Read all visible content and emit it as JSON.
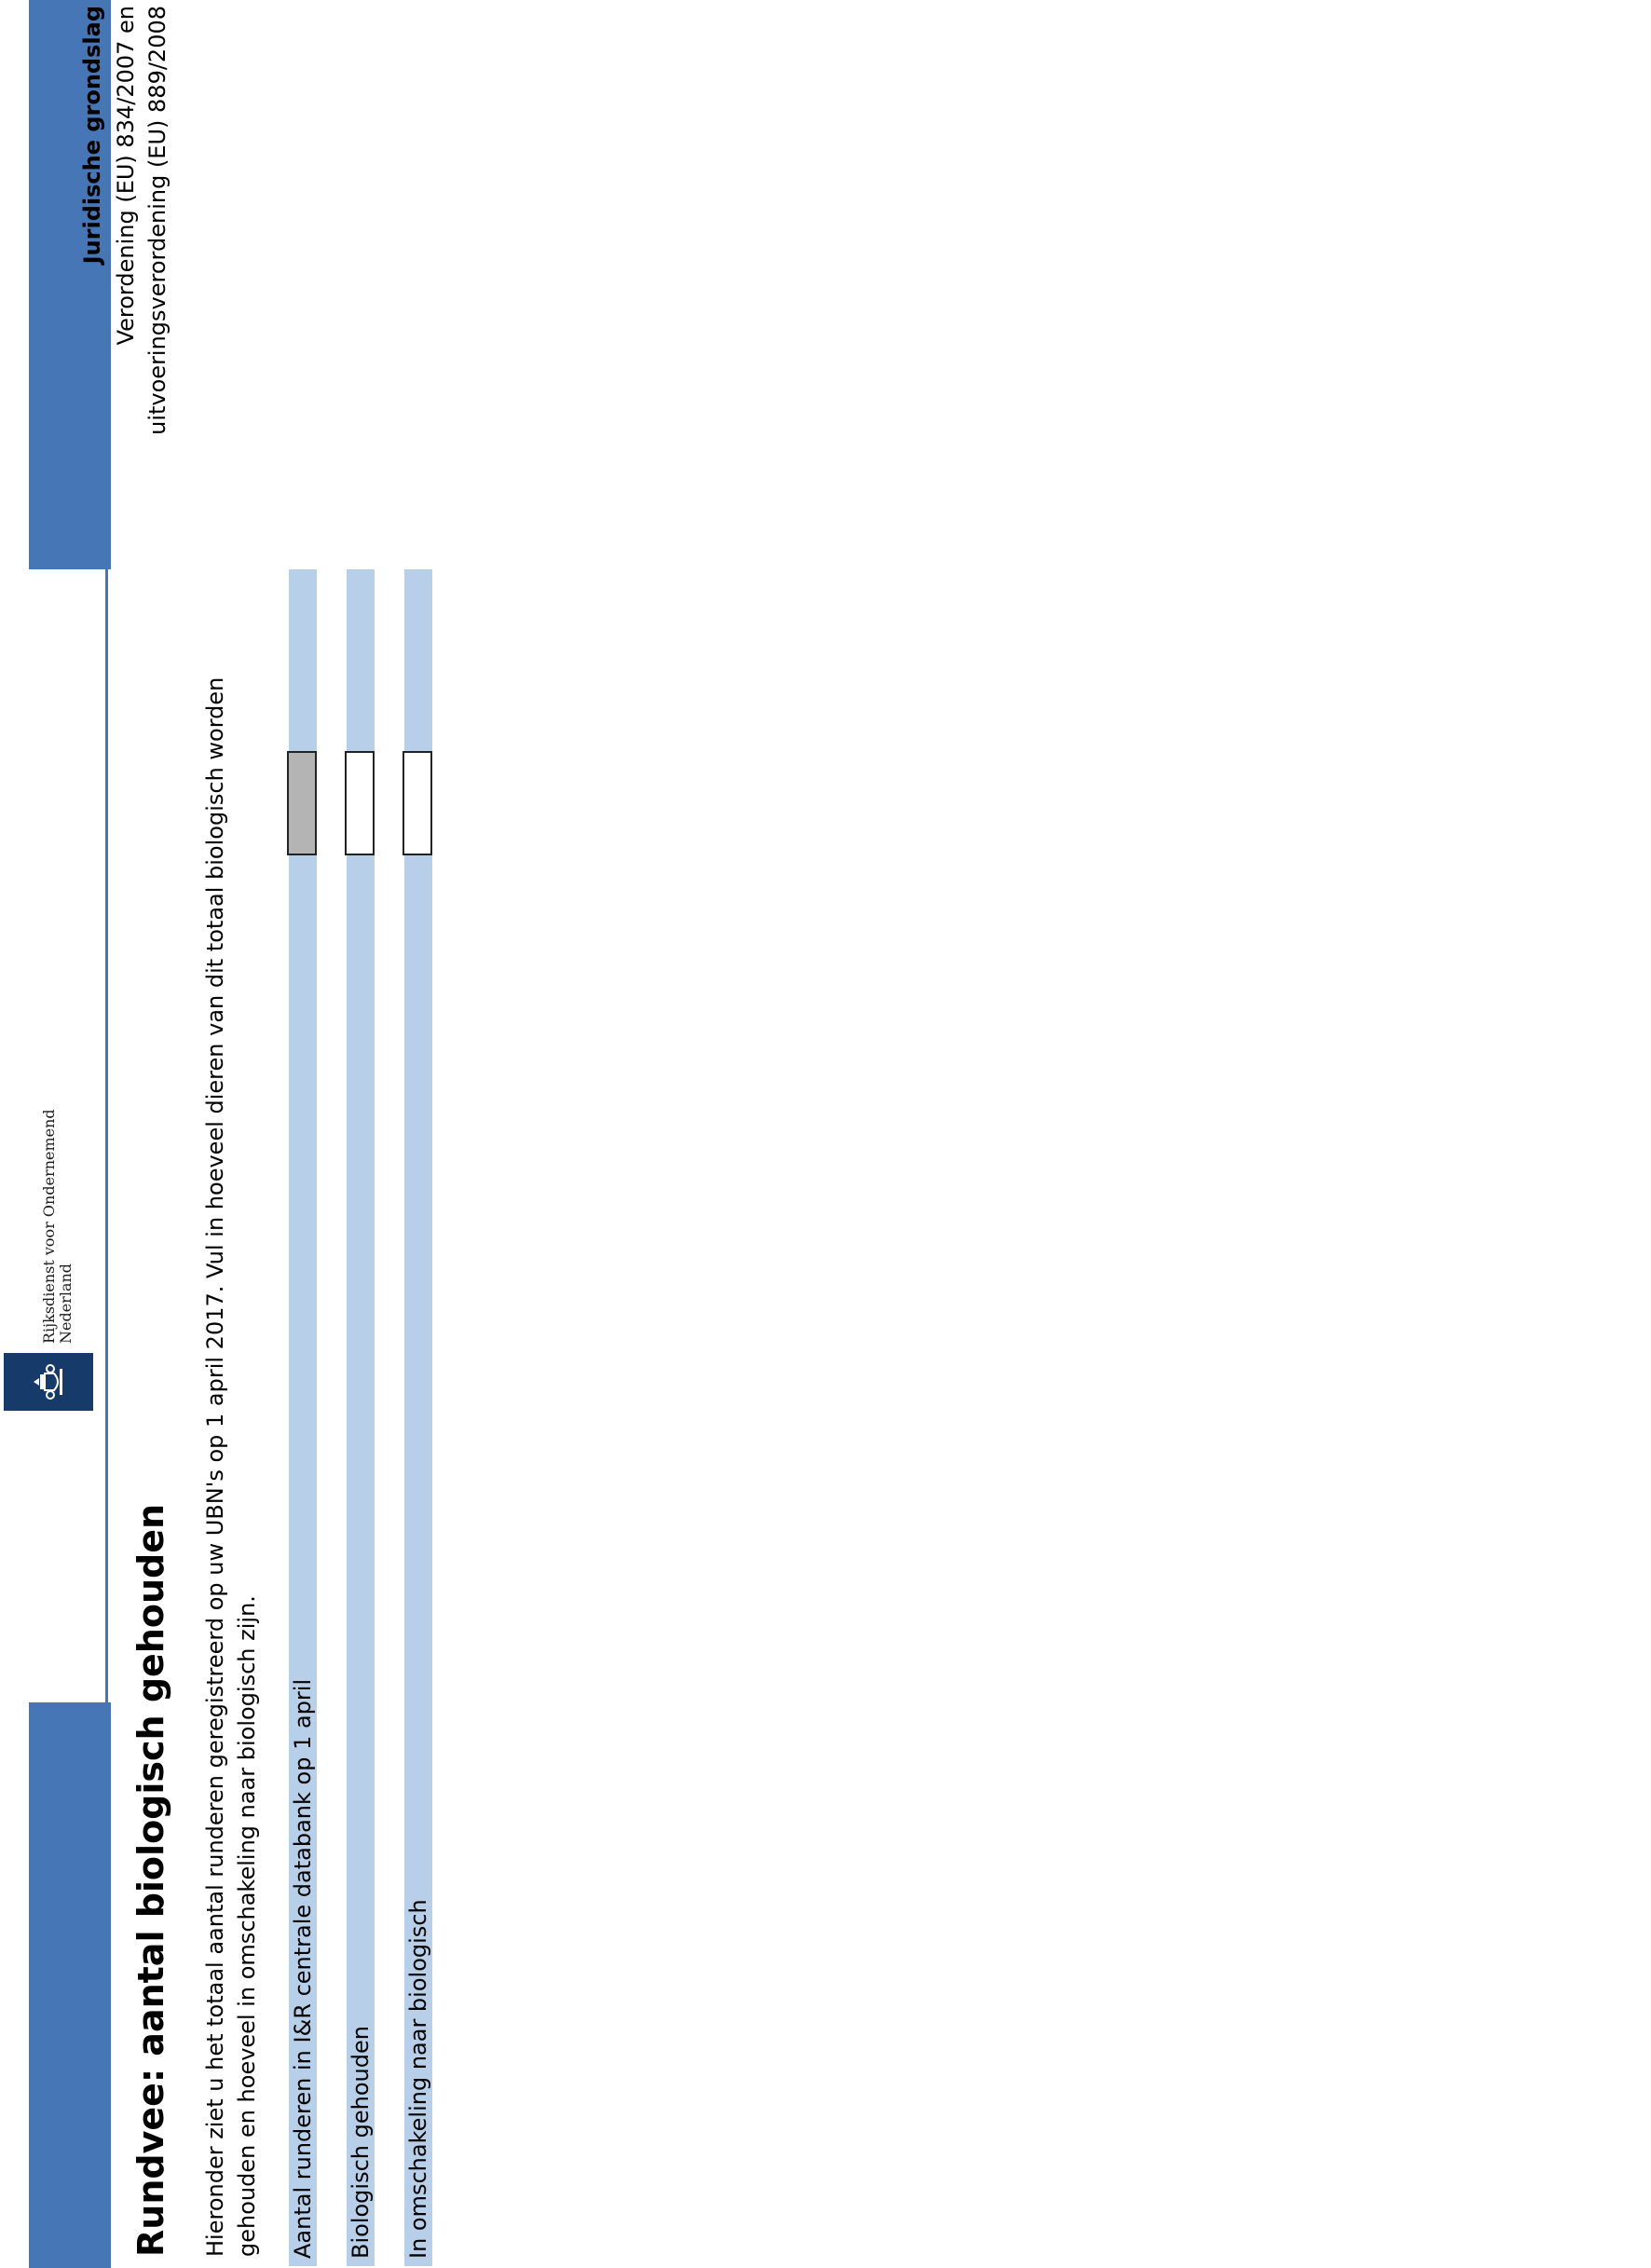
{
  "header": {
    "logo_line1": "Rijksdienst voor Ondernemend",
    "logo_line2": "Nederland",
    "logo_icon": "crest-icon"
  },
  "title": "Rundvee: aantal biologisch gehouden",
  "intro": "Hieronder ziet u het totaal aantal runderen geregistreerd op uw UBN's op 1 april 2017. Vul in hoeveel dieren van dit totaal biologisch worden gehouden en hoeveel in omschakeling naar biologisch zijn.",
  "legal": {
    "title": "Juridische grondslag",
    "line1": "Verordening (EU) 834/2007 en",
    "line2": "uitvoeringsverordening (EU) 889/2008"
  },
  "rows": [
    {
      "label": "Aantal runderen in I&R centrale databank op 1 april",
      "value": ""
    },
    {
      "label": "Biologisch gehouden",
      "value": ""
    },
    {
      "label": "In omschakeling naar biologisch",
      "value": ""
    }
  ],
  "colors": {
    "band": "#4676b6",
    "row": "#b8cfe9",
    "readonly_field": "#b4b4b4",
    "logo": "#163a6a"
  }
}
